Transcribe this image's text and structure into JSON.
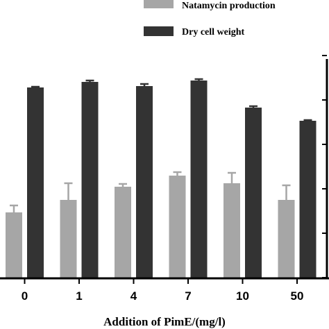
{
  "chart_data": {
    "type": "bar",
    "xlabel": "Addition of PimE/(mg/l)",
    "categories": [
      "0",
      "1",
      "4",
      "7",
      "10",
      "50"
    ],
    "series": [
      {
        "name": "Natamycin production",
        "color": "#a6a6a6",
        "values": [
          94,
          112,
          131,
          147,
          136,
          112
        ],
        "errors": [
          10,
          24,
          4,
          5,
          15,
          21
        ]
      },
      {
        "name": "Dry cell weight",
        "color": "#333333",
        "values": [
          274,
          282,
          276,
          284,
          245,
          226
        ],
        "errors": [
          1,
          2,
          3,
          2,
          2,
          1
        ]
      }
    ],
    "ylim": [
      0,
      320
    ],
    "legend_position": "top-right"
  }
}
